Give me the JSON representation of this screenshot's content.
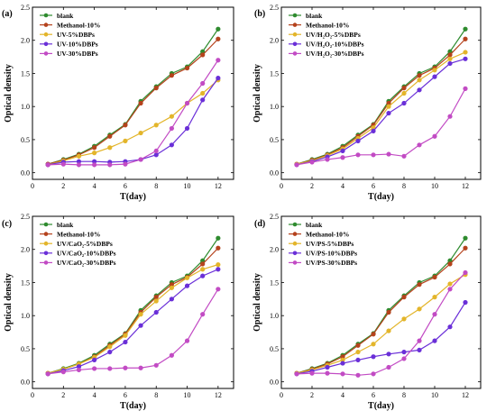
{
  "figure": {
    "colors": {
      "blank": "#2e8b2e",
      "methanol": "#b5421c",
      "five": "#e3b52a",
      "ten": "#6a2fd8",
      "thirty": "#c24bc4"
    }
  },
  "chart_data": [
    {
      "type": "line",
      "panel_label": "(a)",
      "xlabel": "T(day)",
      "ylabel": "Optical density",
      "xlim": [
        0,
        13
      ],
      "ylim": [
        -0.1,
        2.5
      ],
      "xticks": [
        "0",
        "2",
        "4",
        "6",
        "8",
        "10",
        "12"
      ],
      "yticks": [
        "0.0",
        "0.5",
        "1.0",
        "1.5",
        "2.0",
        "2.5"
      ],
      "legend_position": "top-left",
      "grid": false,
      "x": [
        1,
        2,
        3,
        4,
        5,
        6,
        7,
        8,
        9,
        10,
        11,
        12
      ],
      "series": [
        {
          "name": "blank",
          "color_key": "blank",
          "values": [
            0.13,
            0.2,
            0.28,
            0.4,
            0.57,
            0.73,
            1.08,
            1.3,
            1.5,
            1.6,
            1.83,
            2.17
          ]
        },
        {
          "name": "Methanol-10%",
          "color_key": "methanol",
          "values": [
            0.13,
            0.19,
            0.27,
            0.38,
            0.55,
            0.72,
            1.05,
            1.28,
            1.47,
            1.58,
            1.78,
            2.02
          ]
        },
        {
          "name": "UV-5%DBPs",
          "color_key": "five",
          "values": [
            0.12,
            0.18,
            0.25,
            0.3,
            0.38,
            0.48,
            0.6,
            0.72,
            0.85,
            1.05,
            1.2,
            1.4
          ]
        },
        {
          "name": "UV-10%DBPs",
          "color_key": "ten",
          "values": [
            0.12,
            0.16,
            0.17,
            0.17,
            0.16,
            0.17,
            0.2,
            0.27,
            0.42,
            0.67,
            1.1,
            1.43
          ]
        },
        {
          "name": "UV-30%DBPs",
          "color_key": "thirty",
          "values": [
            0.12,
            0.13,
            0.12,
            0.12,
            0.12,
            0.13,
            0.2,
            0.33,
            0.67,
            1.05,
            1.35,
            1.7
          ]
        }
      ]
    },
    {
      "type": "line",
      "panel_label": "(b)",
      "xlabel": "T(day)",
      "ylabel": "Optical density",
      "xlim": [
        0,
        13
      ],
      "ylim": [
        -0.1,
        2.5
      ],
      "xticks": [
        "0",
        "2",
        "4",
        "6",
        "8",
        "10",
        "12"
      ],
      "yticks": [
        "0.0",
        "0.5",
        "1.0",
        "1.5",
        "2.0",
        "2.5"
      ],
      "legend_position": "top-left",
      "grid": false,
      "x": [
        1,
        2,
        3,
        4,
        5,
        6,
        7,
        8,
        9,
        10,
        11,
        12
      ],
      "series": [
        {
          "name": "blank",
          "color_key": "blank",
          "values": [
            0.13,
            0.2,
            0.28,
            0.4,
            0.57,
            0.73,
            1.08,
            1.3,
            1.5,
            1.6,
            1.83,
            2.17
          ]
        },
        {
          "name": "Methanol-10%",
          "color_key": "methanol",
          "values": [
            0.13,
            0.19,
            0.27,
            0.38,
            0.55,
            0.72,
            1.05,
            1.28,
            1.47,
            1.58,
            1.78,
            2.02
          ]
        },
        {
          "name": "UV/H₂O₂-5%DBPs",
          "color_key": "five",
          "values": [
            0.13,
            0.18,
            0.26,
            0.36,
            0.52,
            0.68,
            1.0,
            1.2,
            1.4,
            1.55,
            1.72,
            1.82
          ]
        },
        {
          "name": "UV/H₂O₂-10%DBPs",
          "color_key": "ten",
          "values": [
            0.12,
            0.17,
            0.24,
            0.33,
            0.48,
            0.63,
            0.9,
            1.05,
            1.25,
            1.45,
            1.65,
            1.72
          ]
        },
        {
          "name": "UV/H₂O₂-30%DBPs",
          "color_key": "thirty",
          "values": [
            0.12,
            0.16,
            0.2,
            0.23,
            0.27,
            0.27,
            0.28,
            0.25,
            0.42,
            0.55,
            0.85,
            1.27
          ]
        }
      ]
    },
    {
      "type": "line",
      "panel_label": "(c)",
      "xlabel": "T(day)",
      "ylabel": "Optical density",
      "xlim": [
        0,
        13
      ],
      "ylim": [
        -0.1,
        2.5
      ],
      "xticks": [
        "0",
        "2",
        "4",
        "6",
        "8",
        "10",
        "12"
      ],
      "yticks": [
        "0.0",
        "0.5",
        "1.0",
        "1.5",
        "2.0",
        "2.5"
      ],
      "legend_position": "top-left",
      "grid": false,
      "x": [
        1,
        2,
        3,
        4,
        5,
        6,
        7,
        8,
        9,
        10,
        11,
        12
      ],
      "series": [
        {
          "name": "blank",
          "color_key": "blank",
          "values": [
            0.13,
            0.2,
            0.28,
            0.4,
            0.57,
            0.73,
            1.08,
            1.3,
            1.5,
            1.6,
            1.83,
            2.17
          ]
        },
        {
          "name": "Methanol-10%",
          "color_key": "methanol",
          "values": [
            0.13,
            0.19,
            0.27,
            0.38,
            0.55,
            0.72,
            1.05,
            1.28,
            1.47,
            1.58,
            1.78,
            2.02
          ]
        },
        {
          "name": "UV/CaO₂-5%DBPs",
          "color_key": "five",
          "values": [
            0.13,
            0.19,
            0.27,
            0.37,
            0.53,
            0.7,
            1.02,
            1.22,
            1.42,
            1.57,
            1.7,
            1.77
          ]
        },
        {
          "name": "UV/CaO₂-10%DBPs",
          "color_key": "ten",
          "values": [
            0.12,
            0.17,
            0.23,
            0.33,
            0.45,
            0.6,
            0.85,
            1.05,
            1.25,
            1.45,
            1.6,
            1.7
          ]
        },
        {
          "name": "UV/CaO₂-30%DBPs",
          "color_key": "thirty",
          "values": [
            0.12,
            0.15,
            0.18,
            0.2,
            0.2,
            0.21,
            0.21,
            0.25,
            0.4,
            0.62,
            1.02,
            1.4
          ]
        }
      ]
    },
    {
      "type": "line",
      "panel_label": "(d)",
      "xlabel": "T(day)",
      "ylabel": "Optical density",
      "xlim": [
        0,
        13
      ],
      "ylim": [
        -0.1,
        2.5
      ],
      "xticks": [
        "0",
        "2",
        "4",
        "6",
        "8",
        "10",
        "12"
      ],
      "yticks": [
        "0.0",
        "0.5",
        "1.0",
        "1.5",
        "2.0",
        "2.5"
      ],
      "legend_position": "top-left",
      "grid": false,
      "x": [
        1,
        2,
        3,
        4,
        5,
        6,
        7,
        8,
        9,
        10,
        11,
        12
      ],
      "series": [
        {
          "name": "blank",
          "color_key": "blank",
          "values": [
            0.13,
            0.2,
            0.28,
            0.4,
            0.57,
            0.73,
            1.08,
            1.3,
            1.5,
            1.6,
            1.83,
            2.17
          ]
        },
        {
          "name": "Methanol-10%",
          "color_key": "methanol",
          "values": [
            0.13,
            0.19,
            0.27,
            0.38,
            0.55,
            0.72,
            1.05,
            1.28,
            1.47,
            1.58,
            1.78,
            2.02
          ]
        },
        {
          "name": "UV/PS-5%DBPs",
          "color_key": "five",
          "values": [
            0.13,
            0.18,
            0.25,
            0.33,
            0.45,
            0.57,
            0.77,
            0.95,
            1.1,
            1.28,
            1.48,
            1.62
          ]
        },
        {
          "name": "UV/PS-10%DBPs",
          "color_key": "ten",
          "values": [
            0.12,
            0.16,
            0.22,
            0.28,
            0.33,
            0.38,
            0.42,
            0.45,
            0.48,
            0.62,
            0.83,
            1.2
          ]
        },
        {
          "name": "UV/PS-30%DBPs",
          "color_key": "thirty",
          "values": [
            0.12,
            0.13,
            0.13,
            0.12,
            0.1,
            0.12,
            0.22,
            0.35,
            0.62,
            1.02,
            1.4,
            1.65
          ]
        }
      ]
    }
  ]
}
